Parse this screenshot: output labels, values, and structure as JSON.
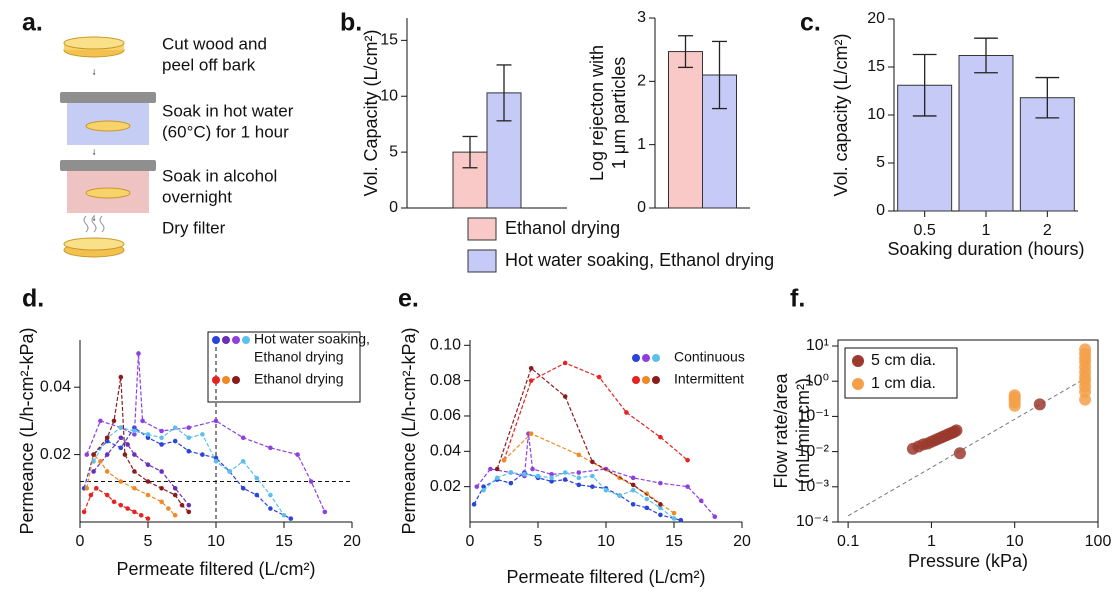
{
  "diagram": {
    "label": "a.",
    "steps": [
      [
        "Cut wood and",
        "peel off bark"
      ],
      [
        "Soak in hot water",
        "(60°C) for 1 hour"
      ],
      [
        "Soak in alcohol",
        "overnight"
      ],
      [
        "Dry filter"
      ]
    ]
  },
  "chart_data": [
    {
      "type": "bar",
      "label": "b.",
      "ylabel": "Vol. Capacity (L/cm²)",
      "ylim": [
        0,
        17
      ],
      "yticks": [
        0,
        5,
        10,
        15
      ],
      "series": [
        {
          "name": "Ethanol drying",
          "color": "#f8c9c6",
          "values": [
            5
          ],
          "errors": [
            1.4
          ]
        },
        {
          "name": "Hot water soaking, Ethanol drying",
          "color": "#c5caf7",
          "values": [
            10.3
          ],
          "errors": [
            2.5
          ]
        }
      ]
    },
    {
      "type": "bar",
      "ylabel": [
        "Log rejecton with",
        "1 μm particles"
      ],
      "ylim": [
        0,
        3
      ],
      "yticks": [
        0,
        1,
        2,
        3
      ],
      "series": [
        {
          "color": "#f8c9c6",
          "values": [
            2.47
          ],
          "errors": [
            0.25
          ]
        },
        {
          "color": "#c5caf7",
          "values": [
            2.1
          ],
          "errors": [
            0.53
          ]
        }
      ]
    },
    {
      "type": "bar",
      "label": "c.",
      "ylabel": "Vol. capacity (L/cm²)",
      "xlabel": "Soaking duration (hours)",
      "categories": [
        "0.5",
        "1",
        "2"
      ],
      "ylim": [
        0,
        20
      ],
      "yticks": [
        0,
        5,
        10,
        15,
        20
      ],
      "series": [
        {
          "color": "#c5caf7",
          "values": [
            13.1,
            16.2,
            11.8
          ],
          "errors": [
            3.2,
            1.8,
            2.1
          ]
        }
      ]
    },
    {
      "type": "line",
      "label": "d.",
      "ylabel": "Permeance  (L/h-cm²-kPa)",
      "xlabel": "Permeate filtered (L/cm²)",
      "xlim": [
        0,
        20
      ],
      "xticks": [
        0,
        5,
        10,
        15,
        20
      ],
      "ylim": [
        0,
        0.054
      ],
      "yticks": [
        0.02,
        0.04
      ],
      "vline": 10,
      "hline": 0.012,
      "legend_frame": true,
      "groups": [
        {
          "name": [
            "Hot water soaking,",
            "Ethanol drying"
          ],
          "series": [
            {
              "color": "#2b45d8",
              "x": [
                0.3,
                1,
                2,
                3,
                4,
                5,
                6,
                7,
                8,
                9,
                10,
                11,
                12,
                13,
                14,
                15.5
              ],
              "values": [
                0.01,
                0.02,
                0.024,
                0.022,
                0.028,
                0.025,
                0.023,
                0.024,
                0.021,
                0.02,
                0.019,
                0.015,
                0.01,
                0.008,
                0.004,
                0.001
              ]
            },
            {
              "color": "#6a2fb8",
              "x": [
                1,
                2,
                3,
                3.5,
                4,
                5,
                6,
                7,
                8
              ],
              "values": [
                0.015,
                0.02,
                0.025,
                0.023,
                0.02,
                0.017,
                0.015,
                0.01,
                0.005
              ]
            },
            {
              "color": "#8e3fe0",
              "x": [
                0.5,
                1.5,
                3,
                4,
                4.3,
                4.6,
                6,
                8,
                10,
                12,
                14,
                16,
                17,
                18
              ],
              "values": [
                0.02,
                0.03,
                0.028,
                0.026,
                0.05,
                0.03,
                0.027,
                0.028,
                0.03,
                0.025,
                0.022,
                0.02,
                0.012,
                0.003
              ]
            },
            {
              "color": "#5bc0eb",
              "x": [
                1,
                2,
                3,
                4,
                5,
                6,
                7,
                8,
                9,
                10,
                11,
                12,
                13,
                14,
                15
              ],
              "values": [
                0.018,
                0.025,
                0.028,
                0.027,
                0.026,
                0.025,
                0.028,
                0.025,
                0.026,
                0.018,
                0.015,
                0.018,
                0.013,
                0.008,
                0.002
              ]
            }
          ]
        },
        {
          "name": [
            "Ethanol drying"
          ],
          "series": [
            {
              "color": "#e52421",
              "x": [
                0.3,
                0.8,
                1.2,
                2,
                2.5,
                3,
                3.5,
                4,
                4.5,
                5
              ],
              "values": [
                0.003,
                0.008,
                0.01,
                0.008,
                0.006,
                0.005,
                0.004,
                0.003,
                0.002,
                0.001
              ]
            },
            {
              "color": "#f08a24",
              "x": [
                0.5,
                1,
                1.5,
                2,
                3,
                4,
                5,
                6,
                6.5,
                7
              ],
              "values": [
                0.01,
                0.02,
                0.018,
                0.015,
                0.012,
                0.01,
                0.008,
                0.006,
                0.004,
                0.002
              ]
            },
            {
              "color": "#8a1c1c",
              "x": [
                1,
                2,
                2.5,
                3,
                3.3,
                4,
                5,
                6,
                7,
                7.5,
                8
              ],
              "values": [
                0.02,
                0.025,
                0.03,
                0.043,
                0.02,
                0.015,
                0.012,
                0.01,
                0.008,
                0.005,
                0.003
              ]
            }
          ]
        }
      ]
    },
    {
      "type": "line",
      "label": "e.",
      "ylabel": "Permeance  (L/h-cm²-kPa)",
      "xlabel": "Permeate filtered (L/cm²)",
      "xlim": [
        0,
        20
      ],
      "xticks": [
        0,
        5,
        10,
        15,
        20
      ],
      "ylim": [
        0,
        0.103
      ],
      "yticks": [
        0.02,
        0.04,
        0.06,
        0.08,
        {
          "value": 0.1,
          "label": "0.10"
        }
      ],
      "legend_frame": false,
      "groups": [
        {
          "name": [
            "Continuous"
          ],
          "series": [
            {
              "color": "#2b45d8",
              "x": [
                0.3,
                1,
                2,
                3,
                4,
                5,
                6,
                7,
                8,
                9,
                10,
                11,
                12,
                13,
                14,
                15.5
              ],
              "values": [
                0.01,
                0.02,
                0.024,
                0.022,
                0.028,
                0.025,
                0.023,
                0.024,
                0.021,
                0.02,
                0.019,
                0.015,
                0.01,
                0.008,
                0.004,
                0.001
              ]
            },
            {
              "color": "#8e3fe0",
              "x": [
                0.5,
                1.5,
                3,
                4,
                4.3,
                4.6,
                6,
                8,
                10,
                12,
                14,
                16,
                17,
                18
              ],
              "values": [
                0.02,
                0.03,
                0.028,
                0.026,
                0.05,
                0.03,
                0.027,
                0.028,
                0.03,
                0.025,
                0.022,
                0.02,
                0.012,
                0.003
              ]
            },
            {
              "color": "#5bc0eb",
              "x": [
                1,
                2,
                3,
                4,
                5,
                6,
                7,
                8,
                9,
                10,
                11,
                12,
                13,
                14,
                15
              ],
              "values": [
                0.018,
                0.025,
                0.028,
                0.027,
                0.026,
                0.025,
                0.028,
                0.025,
                0.026,
                0.018,
                0.015,
                0.018,
                0.013,
                0.008,
                0.002
              ]
            }
          ]
        },
        {
          "name": [
            "Intermittent"
          ],
          "series": [
            {
              "color": "#e52421",
              "x": [
                2.5,
                4.5,
                7,
                9.5,
                11.5,
                14,
                16
              ],
              "values": [
                0.035,
                0.08,
                0.09,
                0.082,
                0.062,
                0.048,
                0.035
              ]
            },
            {
              "color": "#f08a24",
              "x": [
                2.5,
                4.5,
                8,
                11,
                13,
                15
              ],
              "values": [
                0.035,
                0.05,
                0.038,
                0.025,
                0.016,
                0.005
              ]
            },
            {
              "color": "#8a1c1c",
              "x": [
                2,
                4.5,
                7,
                9,
                12,
                14
              ],
              "values": [
                0.03,
                0.087,
                0.071,
                0.034,
                0.021,
                0.01
              ]
            }
          ]
        }
      ]
    },
    {
      "type": "scatter",
      "label": "f.",
      "ylabel": [
        "Flow rate/area",
        "(mL/min.cm²)"
      ],
      "xlabel": "Pressure (kPa)",
      "log": true,
      "xlim": [
        0.0756,
        100
      ],
      "xticks": [
        0.1,
        1,
        10,
        100
      ],
      "ylim": [
        0.0001,
        14.8
      ],
      "yticks": [
        {
          "value": 0.0001,
          "label": "10⁻⁴"
        },
        {
          "value": 0.001,
          "label": "10⁻³"
        },
        {
          "value": 0.01,
          "label": "10⁻²"
        },
        {
          "value": 0.1,
          "label": "10⁻¹"
        },
        {
          "value": 1,
          "label": "10⁰"
        },
        {
          "value": 10,
          "label": "10¹"
        }
      ],
      "legend": "upper left",
      "trend": {
        "x": [
          0.1,
          70
        ],
        "values": [
          0.00015,
          1.2
        ]
      },
      "series": [
        {
          "name": "5 cm dia.",
          "color": "#9b3a2e",
          "x": [
            0.6,
            0.7,
            0.8,
            0.9,
            1.0,
            1.1,
            1.2,
            1.3,
            1.4,
            1.5,
            1.6,
            1.7,
            1.8,
            1.9,
            2.0,
            2.2,
            20
          ],
          "values": [
            0.012,
            0.014,
            0.016,
            0.017,
            0.019,
            0.021,
            0.023,
            0.025,
            0.027,
            0.029,
            0.031,
            0.033,
            0.035,
            0.037,
            0.04,
            0.009,
            0.22
          ]
        },
        {
          "name": "1 cm dia.",
          "color": "#f4a04a",
          "x": [
            10,
            10,
            10,
            10,
            10,
            70,
            70,
            70,
            70,
            70,
            70,
            70,
            70,
            70,
            70,
            70
          ],
          "values": [
            0.2,
            0.25,
            0.3,
            0.35,
            0.4,
            0.3,
            0.5,
            0.7,
            1,
            1.3,
            1.8,
            2.5,
            3.5,
            4.5,
            6,
            8
          ]
        }
      ]
    }
  ]
}
